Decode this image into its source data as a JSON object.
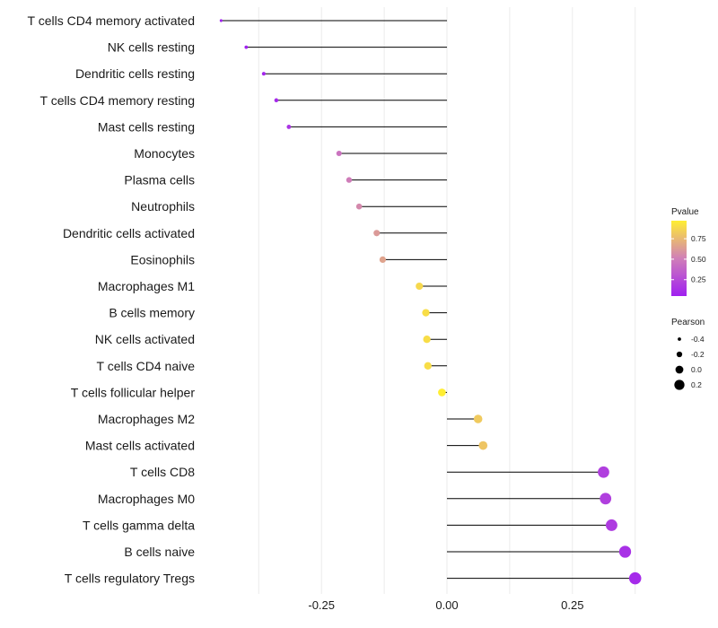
{
  "chart_data": {
    "type": "lollipop",
    "title": "",
    "xlabel": "",
    "ylabel": "",
    "xlim": [
      -0.45,
      0.4
    ],
    "xticks": [
      -0.25,
      0.0,
      0.25
    ],
    "xtick_labels": [
      "-0.25",
      "0.00",
      "0.25"
    ],
    "categories": [
      "T cells CD4 memory activated",
      "NK cells resting",
      "Dendritic cells resting",
      "T cells CD4 memory resting",
      "Mast cells resting",
      "Monocytes",
      "Plasma cells",
      "Neutrophils",
      "Dendritic cells activated",
      "Eosinophils",
      "Macrophages M1",
      "B cells memory",
      "NK cells activated",
      "T cells CD4 naive",
      "T cells follicular helper",
      "Macrophages M2",
      "Mast cells activated",
      "T cells CD8",
      "Macrophages M0",
      "T cells gamma delta",
      "B cells naive",
      "T cells regulatory  Tregs"
    ],
    "pearson": [
      -0.45,
      -0.4,
      -0.365,
      -0.34,
      -0.315,
      -0.215,
      -0.195,
      -0.175,
      -0.14,
      -0.128,
      -0.055,
      -0.042,
      -0.04,
      -0.038,
      -0.01,
      0.062,
      0.072,
      0.312,
      0.316,
      0.328,
      0.355,
      0.375
    ],
    "pvalue": [
      0.05,
      0.05,
      0.08,
      0.1,
      0.15,
      0.45,
      0.5,
      0.55,
      0.62,
      0.66,
      0.88,
      0.9,
      0.9,
      0.9,
      0.97,
      0.82,
      0.8,
      0.2,
      0.2,
      0.18,
      0.13,
      0.1
    ],
    "legend_color": {
      "title": "Pvalue",
      "ticks": [
        0.25,
        0.5,
        0.75
      ],
      "tick_labels": [
        "0.25",
        "0.50",
        "0.75"
      ],
      "range": [
        0.05,
        0.97
      ],
      "colors": [
        "#a020f0",
        "#d07fb8",
        "#ffee33"
      ],
      "placement": "right"
    },
    "legend_size": {
      "title": "Pearson",
      "values": [
        -0.4,
        -0.2,
        0.0,
        0.2
      ],
      "labels": [
        "-0.4",
        "-0.2",
        "0.0",
        "0.2"
      ],
      "placement": "right"
    }
  }
}
